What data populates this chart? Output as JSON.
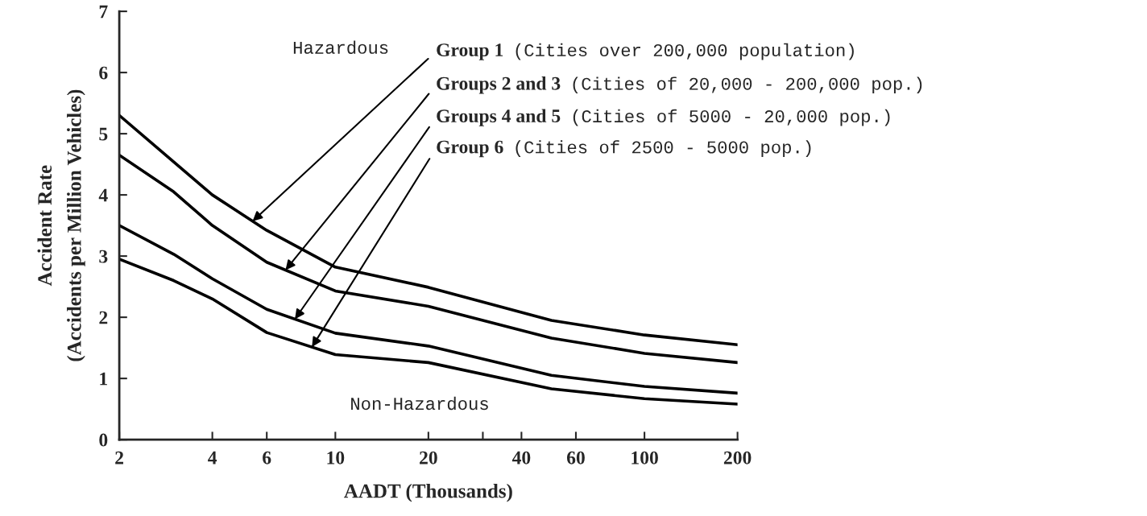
{
  "chart_data": {
    "type": "line",
    "xlabel": "AADT (Thousands)",
    "ylabel": "Accident Rate\n(Accidents per Million Vehicles)",
    "x": [
      2,
      3,
      4,
      6,
      10,
      20,
      50,
      100,
      200
    ],
    "series": [
      {
        "name": "Group 1",
        "color": "#000000",
        "values": [
          5.3,
          4.54,
          4.0,
          3.42,
          2.82,
          2.49,
          1.95,
          1.71,
          1.55
        ]
      },
      {
        "name": "Groups 2 and 3",
        "color": "#000000",
        "values": [
          4.65,
          4.05,
          3.5,
          2.9,
          2.43,
          2.18,
          1.66,
          1.41,
          1.26
        ]
      },
      {
        "name": "Groups 4 and 5",
        "color": "#000000",
        "values": [
          3.5,
          3.03,
          2.63,
          2.13,
          1.74,
          1.53,
          1.05,
          0.87,
          0.76
        ]
      },
      {
        "name": "Group 6",
        "color": "#000000",
        "values": [
          2.95,
          2.6,
          2.3,
          1.75,
          1.39,
          1.26,
          0.83,
          0.67,
          0.58
        ]
      }
    ],
    "annotations": [
      "(Cities over 200,000 population)",
      "(Cities of 20,000 - 200,000 pop.)",
      "(Cities of 5000 - 20,000 pop.)",
      "(Cities of 2500 - 5000 pop.)",
      "Hazardous",
      "Non-Hazardous"
    ],
    "log": "x",
    "xlim": [
      2,
      200
    ],
    "xticks": [
      2,
      4,
      6,
      10,
      20,
      {
        "value": 30,
        "label": null
      },
      40,
      60,
      100,
      200
    ],
    "ylim": [
      0,
      7
    ],
    "yticks": [
      0,
      1,
      2,
      3,
      4,
      5,
      6,
      7
    ],
    "grid": false,
    "legend": false,
    "line_style": "solid",
    "marker": "none"
  }
}
